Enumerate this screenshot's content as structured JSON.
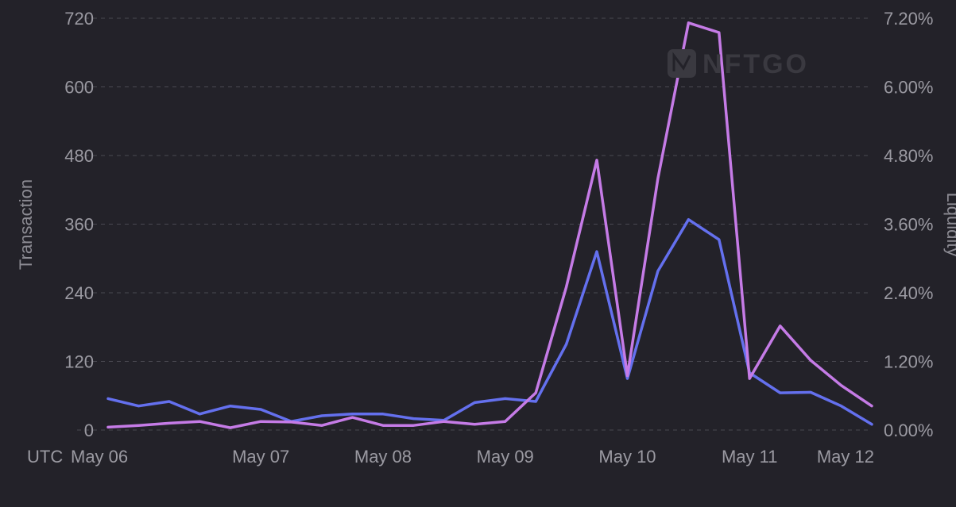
{
  "chart_data": {
    "type": "line",
    "title": "",
    "watermark": "NFTGO",
    "timezone_label": "UTC",
    "ylabel_left": "Transaction",
    "ylabel_right": "Liquidity",
    "ylim_left": [
      0,
      720
    ],
    "ylim_right": [
      0,
      7.2
    ],
    "yticks_left": [
      "0",
      "120",
      "240",
      "360",
      "480",
      "600",
      "720"
    ],
    "yticks_right": [
      "0.00%",
      "1.20%",
      "2.40%",
      "3.60%",
      "4.80%",
      "6.00%",
      "7.20%"
    ],
    "x_tick_labels": [
      "May 06",
      "May 07",
      "May 08",
      "May 09",
      "May 10",
      "May 11",
      "May 12"
    ],
    "x_tick_indices": [
      1,
      5,
      9,
      13,
      17,
      21,
      25
    ],
    "grid": true,
    "colors": {
      "background": "#232229",
      "transaction": "#6470ee",
      "liquidity": "#c57be6"
    },
    "series": [
      {
        "name": "Transaction",
        "axis": "left",
        "values": [
          55,
          42,
          50,
          28,
          42,
          36,
          15,
          25,
          28,
          28,
          20,
          17,
          48,
          55,
          50,
          150,
          312,
          90,
          278,
          368,
          333,
          100,
          65,
          66,
          42,
          10
        ]
      },
      {
        "name": "Liquidity",
        "axis": "right",
        "values": [
          0.05,
          0.08,
          0.12,
          0.15,
          0.04,
          0.15,
          0.14,
          0.08,
          0.22,
          0.08,
          0.08,
          0.15,
          0.1,
          0.15,
          0.65,
          2.5,
          4.72,
          0.95,
          4.4,
          7.12,
          6.95,
          0.9,
          1.82,
          1.22,
          0.78,
          0.42
        ]
      }
    ]
  }
}
